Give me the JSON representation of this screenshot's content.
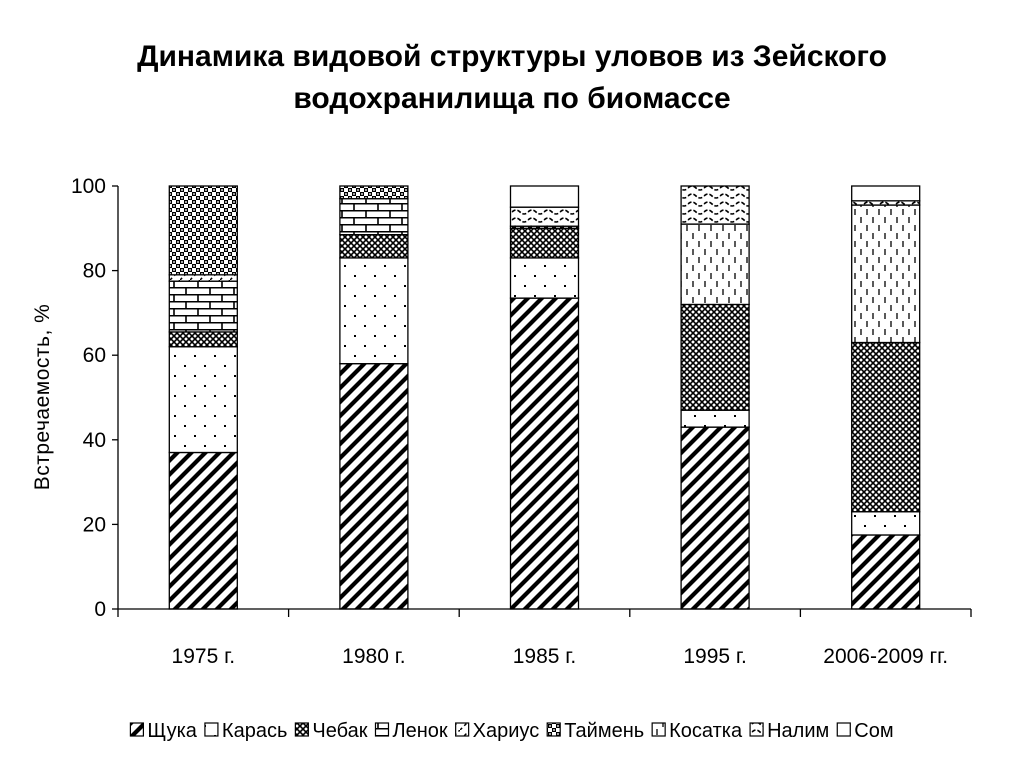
{
  "title_line1": "Динамика видовой структуры уловов из Зейского",
  "title_line2": "водохранилища по биомассе",
  "chart_data": {
    "type": "bar",
    "stacked": true,
    "categories": [
      "1975 г.",
      "1980 г.",
      "1985 г.",
      "1995 г.",
      "2006-2009 гг."
    ],
    "ylabel": "Встречаемость, %",
    "xlabel": "",
    "ylim": [
      0,
      100
    ],
    "yticks": [
      0,
      20,
      40,
      60,
      80,
      100
    ],
    "grid": false,
    "legend_position": "bottom",
    "series": [
      {
        "name": "Щука",
        "pattern": "diagonal-stripes",
        "values": [
          37,
          58,
          73.5,
          43,
          17.5
        ]
      },
      {
        "name": "Карась",
        "pattern": "sparse-dots",
        "values": [
          25,
          25,
          9.5,
          4,
          5.5
        ]
      },
      {
        "name": "Чебак",
        "pattern": "dense-checker",
        "values": [
          3.5,
          5.5,
          7,
          25,
          40
        ]
      },
      {
        "name": "Ленок",
        "pattern": "brick",
        "values": [
          12,
          8.5,
          0,
          0,
          0
        ]
      },
      {
        "name": "Хариус",
        "pattern": "dashed-diagonal",
        "values": [
          1.5,
          0,
          0,
          0,
          0
        ]
      },
      {
        "name": "Таймень",
        "pattern": "checker",
        "values": [
          21,
          3,
          0.5,
          0,
          0
        ]
      },
      {
        "name": "Косатка",
        "pattern": "vertical-dashes",
        "values": [
          0,
          0,
          0,
          19,
          32.5
        ]
      },
      {
        "name": "Налим",
        "pattern": "wavy",
        "values": [
          0,
          0,
          4.5,
          9,
          1
        ]
      },
      {
        "name": "Сом",
        "pattern": "blank",
        "values": [
          0,
          0,
          5,
          0,
          3.5
        ]
      }
    ]
  }
}
